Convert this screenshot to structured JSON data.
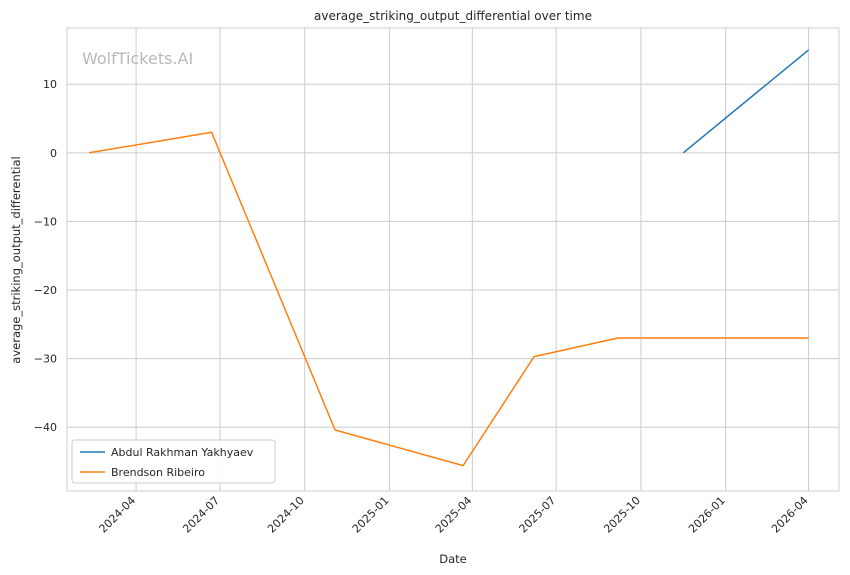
{
  "chart_data": {
    "type": "line",
    "title": "average_striking_output_differential over time",
    "xlabel": "Date",
    "ylabel": "average_striking_output_differential",
    "watermark": "WolfTickets.AI",
    "x_ticks": [
      "2024-04",
      "2024-07",
      "2024-10",
      "2025-01",
      "2025-04",
      "2025-07",
      "2025-10",
      "2026-01",
      "2026-04"
    ],
    "y_ticks": [
      10,
      0,
      -10,
      -20,
      -30,
      -40
    ],
    "xlim": [
      "2024-01-17",
      "2026-05-04"
    ],
    "ylim": [
      -49.3,
      18.2
    ],
    "grid": true,
    "legend_position": "lower-left",
    "series": [
      {
        "name": "Abdul Rakhman Yakhyaev",
        "color": "#1f77b4",
        "points": [
          {
            "x": "2025-11-16",
            "y": 0
          },
          {
            "x": "2026-04-01",
            "y": 15
          }
        ]
      },
      {
        "name": "Brendson Ribeiro",
        "color": "#ff7f0e",
        "points": [
          {
            "x": "2024-02-10",
            "y": 0
          },
          {
            "x": "2024-06-22",
            "y": 3
          },
          {
            "x": "2024-11-03",
            "y": -40.4
          },
          {
            "x": "2025-03-22",
            "y": -45.6
          },
          {
            "x": "2025-06-07",
            "y": -29.7
          },
          {
            "x": "2025-09-06",
            "y": -27
          },
          {
            "x": "2026-04-01",
            "y": -27
          }
        ]
      }
    ]
  }
}
